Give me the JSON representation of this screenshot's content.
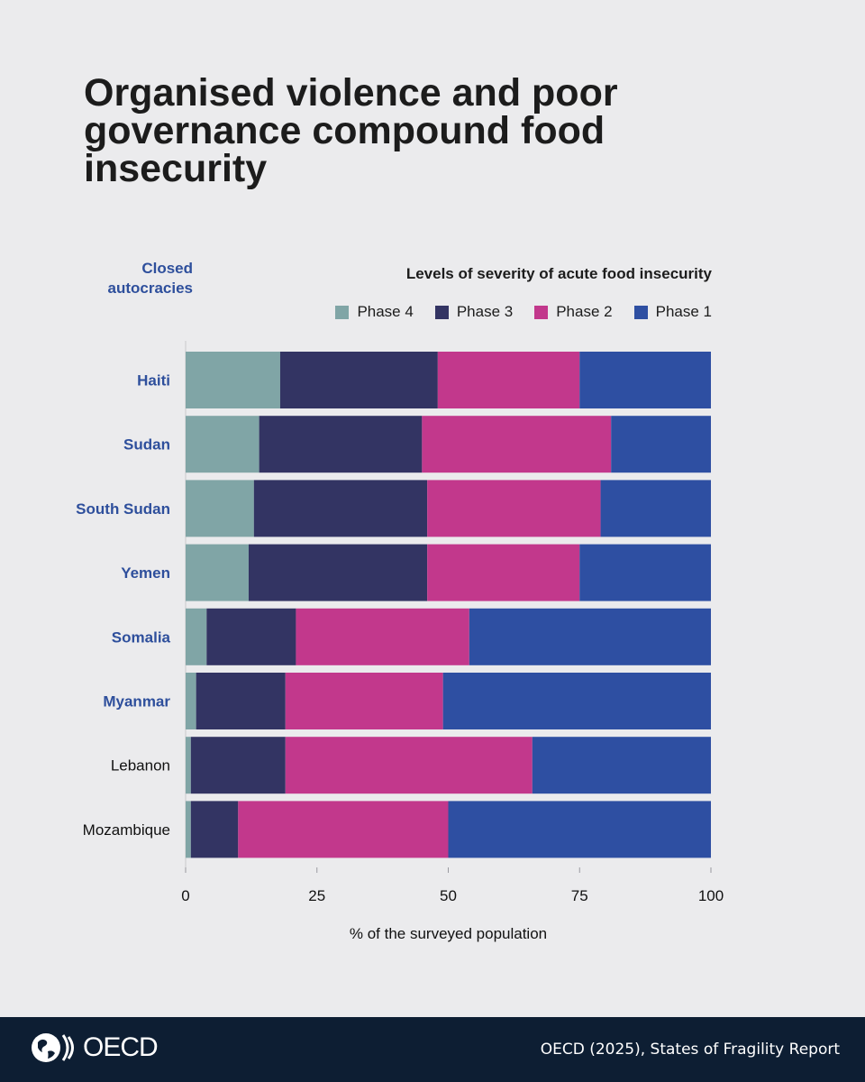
{
  "title": "Organised violence and poor governance compound food insecurity",
  "group_label": "Closed autocracies",
  "legend_title": "Levels of severity of acute food insecurity",
  "colors": {
    "phase4": "#80a5a6",
    "phase3": "#333463",
    "phase2": "#c2388c",
    "phase1": "#2e4fa2",
    "closed_autocracy_label": "#2e4f9c",
    "other_label": "#111111"
  },
  "chart_data": {
    "type": "bar",
    "orientation": "horizontal",
    "stacked": true,
    "categories": [
      "Haiti",
      "Sudan",
      "South Sudan",
      "Yemen",
      "Somalia",
      "Myanmar",
      "Lebanon",
      "Mozambique"
    ],
    "closed_autocracy": [
      true,
      true,
      true,
      true,
      true,
      true,
      false,
      false
    ],
    "series": [
      {
        "name": "Phase 4",
        "values": [
          18,
          14,
          13,
          12,
          4,
          2,
          1,
          1
        ]
      },
      {
        "name": "Phase 3",
        "values": [
          30,
          31,
          33,
          34,
          17,
          17,
          18,
          9
        ]
      },
      {
        "name": "Phase 2",
        "values": [
          27,
          36,
          33,
          29,
          33,
          30,
          47,
          40
        ]
      },
      {
        "name": "Phase 1",
        "values": [
          25,
          19,
          21,
          25,
          46,
          51,
          34,
          50
        ]
      }
    ],
    "legend_order": [
      "Phase 4",
      "Phase 3",
      "Phase 2",
      "Phase 1"
    ],
    "xlim": [
      0,
      100
    ],
    "xticks": [
      0,
      25,
      50,
      75,
      100
    ],
    "xlabel": "% of the surveyed population",
    "grid": false,
    "legend_placement": "top-right"
  },
  "footer": {
    "logo_text": "OECD",
    "source": "OECD (2025), States of Fragility Report"
  }
}
